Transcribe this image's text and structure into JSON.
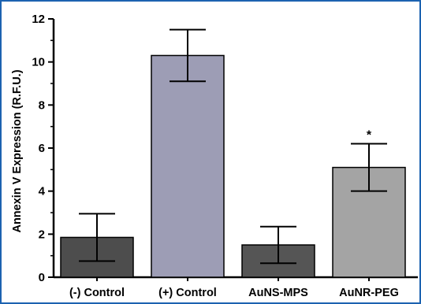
{
  "chart_data": {
    "type": "bar",
    "title": "",
    "xlabel": "",
    "ylabel": "Annexin V Expression (R.F.U.)",
    "ylim": [
      0,
      12
    ],
    "yticks": [
      "0",
      "2",
      "4",
      "6",
      "8",
      "10",
      "12"
    ],
    "categories": [
      "(-) Control",
      "(+) Control",
      "AuNS-MPS",
      "AuNR-PEG"
    ],
    "values": [
      1.85,
      10.3,
      1.5,
      5.1
    ],
    "errors": [
      1.1,
      1.2,
      0.85,
      1.1
    ],
    "bar_colors": [
      "#4d4d4d",
      "#9d9db5",
      "#555555",
      "#a4a4a4"
    ],
    "annotations": [
      {
        "category": "AuNR-PEG",
        "text": "*"
      }
    ],
    "grid": false
  }
}
